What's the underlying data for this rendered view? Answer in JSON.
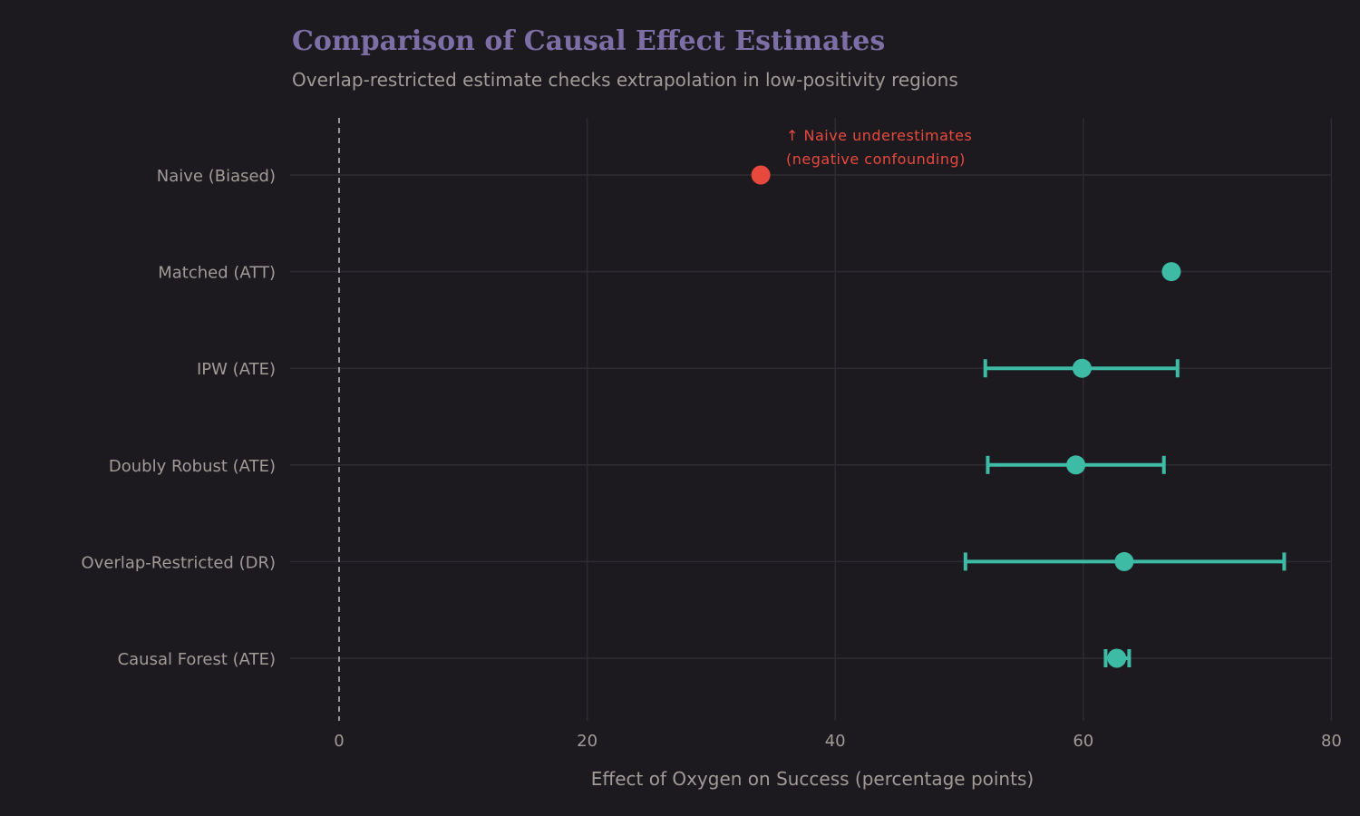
{
  "chart_data": {
    "type": "scatter",
    "subtype": "forest-plot-with-error-bars",
    "title": "Comparison of Causal Effect Estimates",
    "subtitle": "Overlap-restricted estimate checks extrapolation in low-positivity regions",
    "xlabel": "Effect of Oxygen on Success (percentage points)",
    "ylabel": "",
    "xlim": [
      -4,
      80
    ],
    "xticks": [
      0,
      20,
      40,
      60,
      80
    ],
    "grid": true,
    "reference_line": {
      "x": 0,
      "style": "dashed"
    },
    "categories": [
      "Naive (Biased)",
      "Matched (ATT)",
      "IPW (ATE)",
      "Doubly Robust (ATE)",
      "Overlap-Restricted (DR)",
      "Causal Forest (ATE)"
    ],
    "estimates": [
      34.0,
      67.1,
      59.9,
      59.4,
      63.3,
      62.7
    ],
    "ci_lower": [
      null,
      null,
      52.1,
      52.3,
      50.5,
      61.8
    ],
    "ci_upper": [
      null,
      null,
      67.6,
      66.5,
      76.2,
      63.7
    ],
    "colors": [
      "#e8493d",
      "#3dbba5",
      "#3dbba5",
      "#3dbba5",
      "#3dbba5",
      "#3dbba5"
    ],
    "annotation": {
      "lines": [
        "↑ Naive underestimates",
        "(negative confounding)"
      ],
      "color": "#e8493d"
    }
  }
}
